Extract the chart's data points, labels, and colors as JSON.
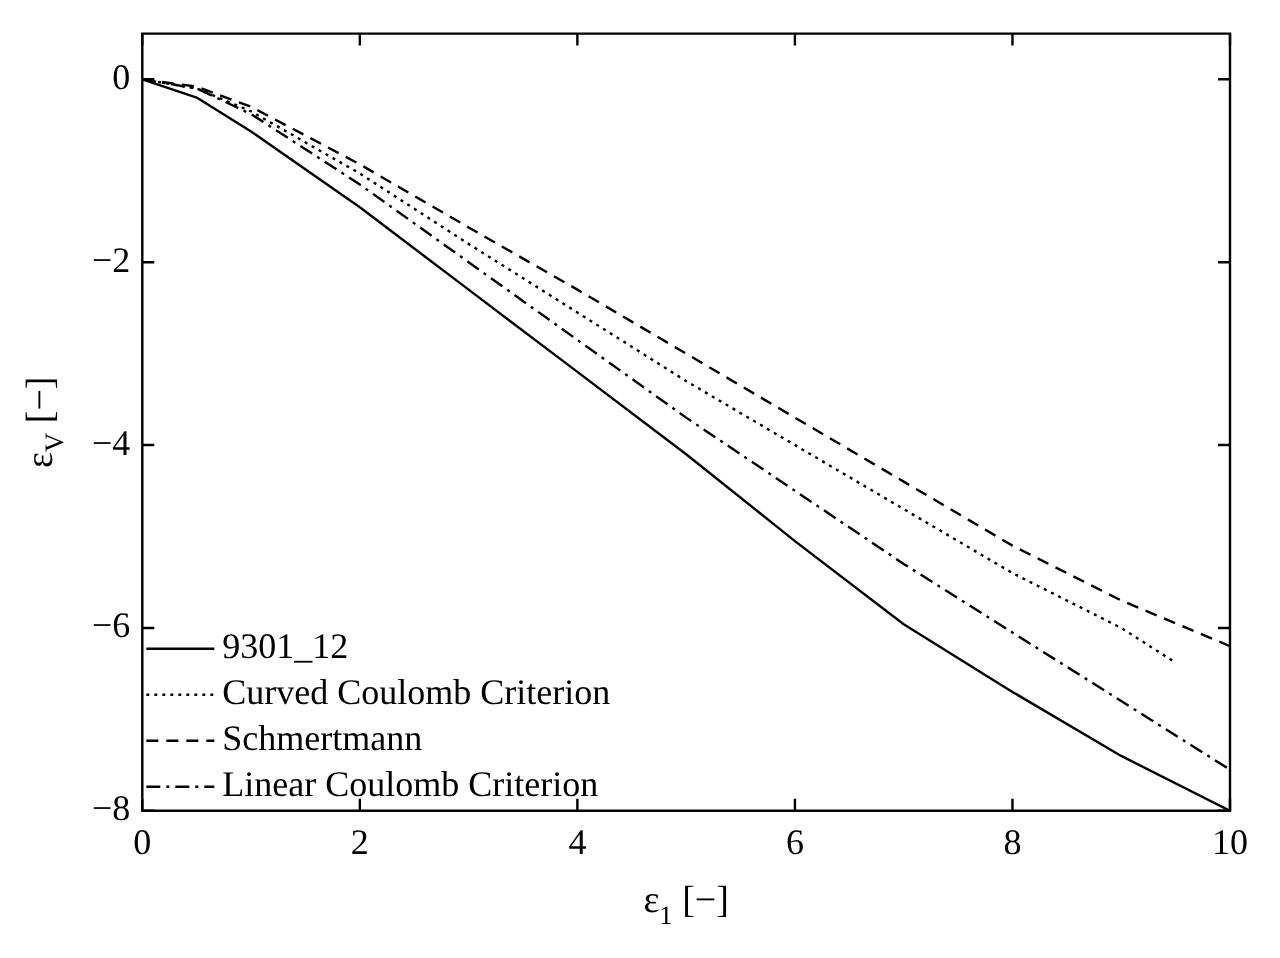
{
  "chart_data": {
    "type": "line",
    "xlabel": "ε$_{1}$ [−]",
    "ylabel": "ε$_{V}$ [−]",
    "xlim": [
      0,
      10
    ],
    "xticks": [
      0,
      2,
      4,
      6,
      8,
      10
    ],
    "ylim": [
      -8,
      0.5
    ],
    "yticks": [
      0,
      -2,
      -4,
      -6,
      -8
    ],
    "grid": false,
    "legend": "bottom left",
    "marker": "none",
    "series": [
      {
        "name": "9301_12",
        "color": "#000000",
        "line_style": "solid",
        "x": [
          0,
          0.5,
          1,
          2,
          3,
          4,
          5,
          6,
          7,
          8,
          9,
          10
        ],
        "values": [
          0,
          -0.2,
          -0.57,
          -1.4,
          -2.3,
          -3.2,
          -4.1,
          -5.05,
          -5.96,
          -6.7,
          -7.4,
          -8.0
        ]
      },
      {
        "name": "Curved Coulomb Criterion",
        "color": "#000000",
        "line_style": "dotted",
        "x": [
          0,
          0.5,
          1,
          2,
          3,
          4,
          5,
          6,
          7,
          8,
          9,
          9.5
        ],
        "values": [
          0,
          -0.1,
          -0.35,
          -1.03,
          -1.8,
          -2.55,
          -3.3,
          -4.0,
          -4.7,
          -5.4,
          -6.0,
          -6.38
        ]
      },
      {
        "name": "Schmertmann",
        "color": "#000000",
        "line_style": "dashed",
        "x": [
          0,
          0.5,
          1,
          2,
          3,
          4,
          5,
          6,
          7,
          8,
          9,
          10
        ],
        "values": [
          0,
          -0.08,
          -0.3,
          -0.93,
          -1.62,
          -2.3,
          -3.0,
          -3.7,
          -4.4,
          -5.1,
          -5.7,
          -6.2
        ]
      },
      {
        "name": "Linear Coulomb Criterion",
        "color": "#000000",
        "line_style": "dashdot",
        "x": [
          0,
          0.5,
          1,
          2,
          3,
          4,
          5,
          6,
          7,
          8,
          9,
          10
        ],
        "values": [
          0,
          -0.1,
          -0.38,
          -1.15,
          -2.0,
          -2.85,
          -3.7,
          -4.5,
          -5.3,
          -6.05,
          -6.8,
          -7.55
        ]
      }
    ]
  }
}
